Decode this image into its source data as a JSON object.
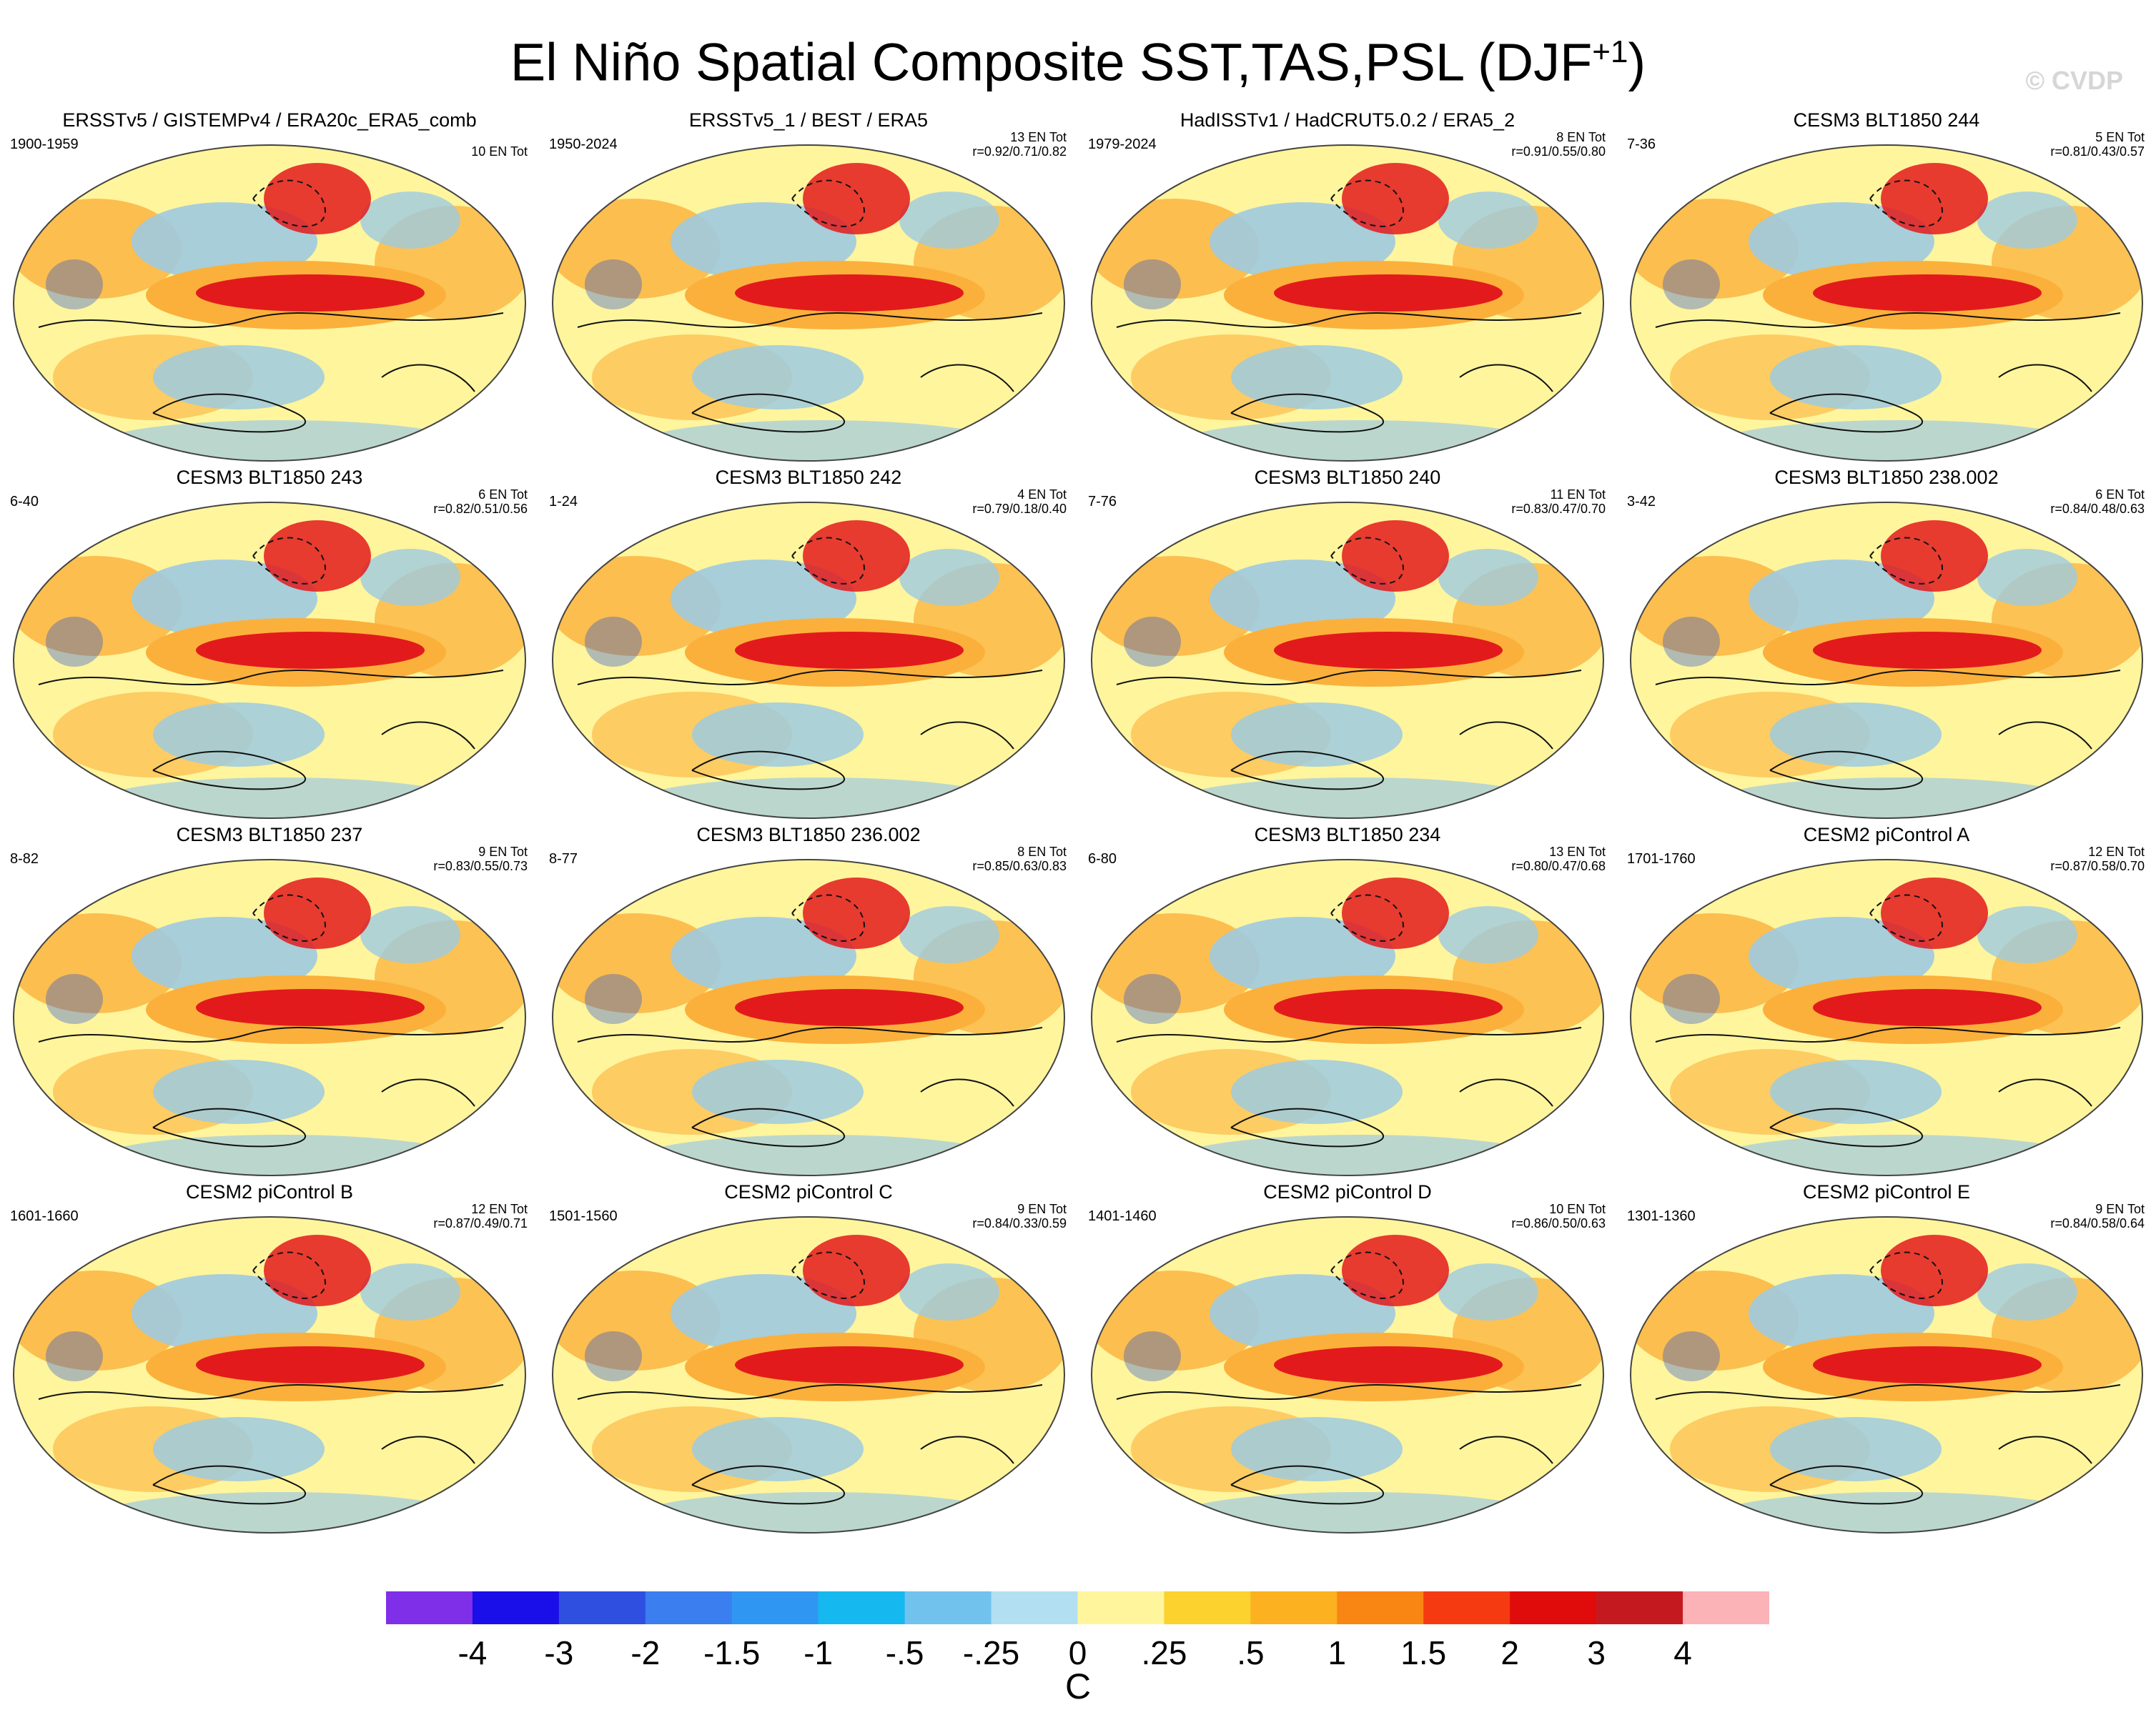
{
  "figure": {
    "title_main": "El Niño Spatial Composite SST,TAS,PSL (DJF",
    "title_sup": "+1",
    "title_close": ")",
    "watermark": "© CVDP",
    "colorbar_unit": "C"
  },
  "colors": {
    "neutral": "#fff59d",
    "warm_mid": "#fbb03b",
    "warm_strong": "#e31a1c",
    "cool_mid": "#9ecae1",
    "cool_strong": "#1f4fd8"
  },
  "colorbar": {
    "colors": [
      "#7f2fe8",
      "#1a0fe8",
      "#2e4fe0",
      "#3a7ef0",
      "#2f97f2",
      "#16b8f0",
      "#71c3ee",
      "#b3dff2",
      "#fff59d",
      "#fbd22e",
      "#fbb120",
      "#f98513",
      "#f53a12",
      "#e00b0b",
      "#c41a1f",
      "#fbb3b8"
    ],
    "ticks": [
      "-4",
      "-3",
      "-2",
      "-1.5",
      "-1",
      "-.5",
      "-.25",
      "0",
      ".25",
      ".5",
      "1",
      "1.5",
      "2",
      "3",
      "4"
    ]
  },
  "panels": [
    {
      "title": "ERSSTv5 / GISTEMPv4 / ERA20c_ERA5_comb",
      "years": "1900-1959",
      "count": "10 EN Tot",
      "corr": ""
    },
    {
      "title": "ERSSTv5_1 / BEST / ERA5",
      "years": "1950-2024",
      "count": "13 EN Tot",
      "corr": "r=0.92/0.71/0.82"
    },
    {
      "title": "HadISSTv1 / HadCRUT5.0.2 / ERA5_2",
      "years": "1979-2024",
      "count": "8 EN Tot",
      "corr": "r=0.91/0.55/0.80"
    },
    {
      "title": "CESM3 BLT1850 244",
      "years": "7-36",
      "count": "5 EN Tot",
      "corr": "r=0.81/0.43/0.57"
    },
    {
      "title": "CESM3 BLT1850 243",
      "years": "6-40",
      "count": "6 EN Tot",
      "corr": "r=0.82/0.51/0.56"
    },
    {
      "title": "CESM3 BLT1850 242",
      "years": "1-24",
      "count": "4 EN Tot",
      "corr": "r=0.79/0.18/0.40"
    },
    {
      "title": "CESM3 BLT1850 240",
      "years": "7-76",
      "count": "11 EN Tot",
      "corr": "r=0.83/0.47/0.70"
    },
    {
      "title": "CESM3 BLT1850 238.002",
      "years": "3-42",
      "count": "6 EN Tot",
      "corr": "r=0.84/0.48/0.63"
    },
    {
      "title": "CESM3 BLT1850 237",
      "years": "8-82",
      "count": "9 EN Tot",
      "corr": "r=0.83/0.55/0.73"
    },
    {
      "title": "CESM3 BLT1850 236.002",
      "years": "8-77",
      "count": "8 EN Tot",
      "corr": "r=0.85/0.63/0.83"
    },
    {
      "title": "CESM3 BLT1850 234",
      "years": "6-80",
      "count": "13 EN Tot",
      "corr": "r=0.80/0.47/0.68"
    },
    {
      "title": "CESM2 piControl A",
      "years": "1701-1760",
      "count": "12 EN Tot",
      "corr": "r=0.87/0.58/0.70"
    },
    {
      "title": "CESM2 piControl B",
      "years": "1601-1660",
      "count": "12 EN Tot",
      "corr": "r=0.87/0.49/0.71"
    },
    {
      "title": "CESM2 piControl C",
      "years": "1501-1560",
      "count": "9 EN Tot",
      "corr": "r=0.84/0.33/0.59"
    },
    {
      "title": "CESM2 piControl D",
      "years": "1401-1460",
      "count": "10 EN Tot",
      "corr": "r=0.86/0.50/0.63"
    },
    {
      "title": "CESM2 piControl E",
      "years": "1301-1360",
      "count": "9 EN Tot",
      "corr": "r=0.84/0.58/0.64"
    }
  ]
}
